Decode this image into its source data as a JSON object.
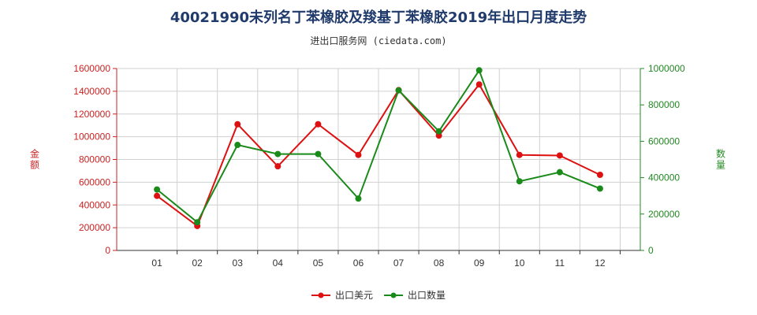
{
  "chart_data": {
    "type": "line",
    "title": "40021990未列名丁苯橡胶及羧基丁苯橡胶2019年出口月度走势",
    "subtitle": "进出口服务网 (ciedata.com)",
    "categories": [
      "01",
      "02",
      "03",
      "04",
      "05",
      "06",
      "07",
      "08",
      "09",
      "10",
      "11",
      "12"
    ],
    "y_left": {
      "label": "金额",
      "range": [
        0,
        1600000
      ],
      "ticks": [
        "0",
        "200000",
        "400000",
        "600000",
        "800000",
        "1000000",
        "1200000",
        "1400000",
        "1600000"
      ]
    },
    "y_right": {
      "label": "数量",
      "range": [
        0,
        1000000
      ],
      "ticks": [
        "0",
        "200000",
        "400000",
        "600000",
        "800000",
        "1000000"
      ]
    },
    "series": [
      {
        "name": "出口美元",
        "axis": "left",
        "color": "#dd1111",
        "values": [
          480000,
          215000,
          1110000,
          740000,
          1110000,
          840000,
          1410000,
          1010000,
          1460000,
          840000,
          835000,
          665000
        ]
      },
      {
        "name": "出口数量",
        "axis": "right",
        "color": "#1a8a1a",
        "values": [
          335000,
          155000,
          580000,
          530000,
          530000,
          285000,
          880000,
          655000,
          990000,
          380000,
          430000,
          340000
        ]
      }
    ],
    "grid": true,
    "legend_position": "bottom-center"
  }
}
